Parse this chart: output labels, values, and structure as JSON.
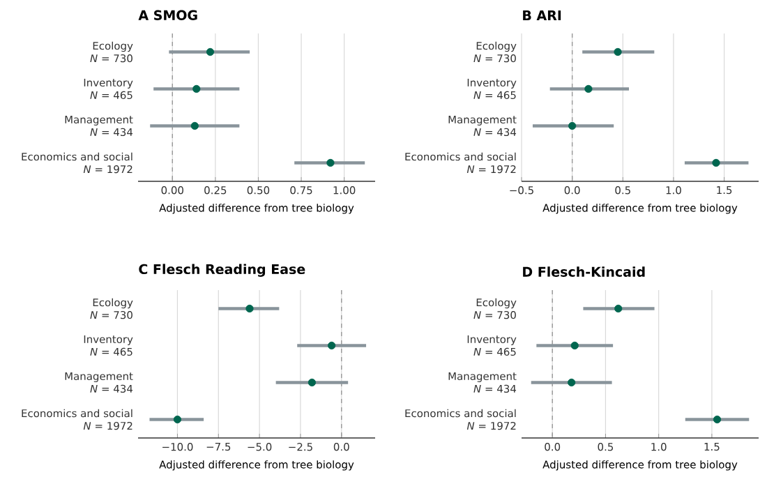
{
  "chart_data": [
    {
      "type": "scatter",
      "orientation": "horizontal",
      "title": "A  SMOG",
      "xlabel": "Adjusted difference from tree biology",
      "categories": [
        "Ecology\n*N* = 730",
        "Inventory\n*N* = 465",
        "Management\n*N* = 434",
        "Economics and social\n*N* = 1972"
      ],
      "values": [
        0.22,
        0.14,
        0.13,
        0.92
      ],
      "errors": [
        [
          -0.02,
          0.45
        ],
        [
          -0.11,
          0.39
        ],
        [
          -0.13,
          0.39
        ],
        [
          0.71,
          1.12
        ]
      ],
      "color": "#00664f",
      "grid": "x",
      "xlim": [
        -0.2,
        1.18
      ],
      "xticks": [
        {
          "value": 0,
          "label": "0.00"
        },
        {
          "value": 0.25,
          "label": "0.25"
        },
        {
          "value": 0.5,
          "label": "0.50"
        },
        {
          "value": 0.75,
          "label": "0.75"
        },
        {
          "value": 1,
          "label": "1.00"
        }
      ],
      "ref_lines": [
        {
          "axis": "x",
          "value": 0,
          "line_style": "dashed",
          "color": "#999999"
        }
      ]
    },
    {
      "type": "scatter",
      "orientation": "horizontal",
      "title": "B  ARI",
      "xlabel": "Adjusted difference from tree biology",
      "categories": [
        "Ecology\n*N* = 730",
        "Inventory\n*N* = 465",
        "Management\n*N* = 434",
        "Economics and social\n*N* = 1972"
      ],
      "values": [
        0.45,
        0.16,
        0.0,
        1.42
      ],
      "errors": [
        [
          0.1,
          0.81
        ],
        [
          -0.22,
          0.56
        ],
        [
          -0.39,
          0.41
        ],
        [
          1.11,
          1.74
        ]
      ],
      "color": "#00664f",
      "grid": "x",
      "xlim": [
        -0.5,
        1.84
      ],
      "xticks": [
        {
          "value": -0.5,
          "label": "−0.5"
        },
        {
          "value": 0,
          "label": "0.0"
        },
        {
          "value": 0.5,
          "label": "0.5"
        },
        {
          "value": 1,
          "label": "1.0"
        },
        {
          "value": 1.5,
          "label": "1.5"
        }
      ],
      "ref_lines": [
        {
          "axis": "x",
          "value": 0,
          "line_style": "dashed",
          "color": "#999999"
        }
      ]
    },
    {
      "type": "scatter",
      "orientation": "horizontal",
      "title": "C  Flesch Reading Ease",
      "xlabel": "Adjusted difference from tree biology",
      "categories": [
        "Ecology\n*N* = 730",
        "Inventory\n*N* = 465",
        "Management\n*N* = 434",
        "Economics and social\n*N* = 1972"
      ],
      "values": [
        -5.6,
        -0.6,
        -1.8,
        -10.0
      ],
      "errors": [
        [
          -7.5,
          -3.8
        ],
        [
          -2.7,
          1.5
        ],
        [
          -4.0,
          0.4
        ],
        [
          -11.7,
          -8.4
        ]
      ],
      "color": "#00664f",
      "grid": "x",
      "xlim": [
        -12.4,
        2.05
      ],
      "xticks": [
        {
          "value": -10,
          "label": "−10.0"
        },
        {
          "value": -7.5,
          "label": "−7.5"
        },
        {
          "value": -5,
          "label": "−5.0"
        },
        {
          "value": -2.5,
          "label": "−2.5"
        },
        {
          "value": 0,
          "label": "0.0"
        }
      ],
      "ref_lines": [
        {
          "axis": "x",
          "value": 0,
          "line_style": "dashed",
          "color": "#999999"
        }
      ]
    },
    {
      "type": "scatter",
      "orientation": "horizontal",
      "title": "D  Flesch-Kincaid",
      "xlabel": "Adjusted difference from tree biology",
      "categories": [
        "Ecology\n*N* = 730",
        "Inventory\n*N* = 465",
        "Management\n*N* = 434",
        "Economics and social\n*N* = 1972"
      ],
      "values": [
        0.62,
        0.21,
        0.18,
        1.55
      ],
      "errors": [
        [
          0.29,
          0.96
        ],
        [
          -0.15,
          0.57
        ],
        [
          -0.2,
          0.56
        ],
        [
          1.25,
          1.85
        ]
      ],
      "color": "#00664f",
      "grid": "x",
      "xlim": [
        -0.29,
        1.94
      ],
      "xticks": [
        {
          "value": 0,
          "label": "0.0"
        },
        {
          "value": 0.5,
          "label": "0.5"
        },
        {
          "value": 1,
          "label": "1.0"
        },
        {
          "value": 1.5,
          "label": "1.5"
        }
      ],
      "ref_lines": [
        {
          "axis": "x",
          "value": 0,
          "line_style": "dashed",
          "color": "#999999"
        }
      ]
    }
  ]
}
